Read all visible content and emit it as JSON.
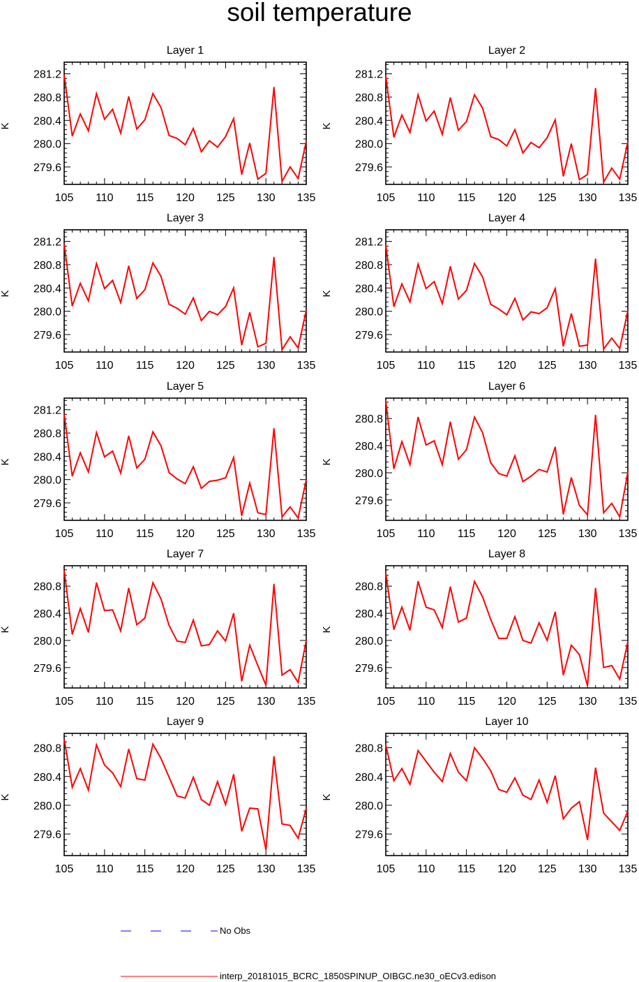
{
  "title": "soil temperature",
  "chart_data": [
    {
      "type": "line",
      "title": "Layer 1",
      "xlabel": "",
      "ylabel": "K",
      "xlim": [
        105,
        135
      ],
      "ylim": [
        279.3,
        281.4
      ],
      "yticks": [
        279.6,
        280.0,
        280.4,
        280.8,
        281.2
      ],
      "xticks": [
        105,
        110,
        115,
        120,
        125,
        130,
        135
      ],
      "series": [
        {
          "name": "interp_20181015_BCRC_1850SPINUP_OIBGC.ne30_oECv3.edison",
          "color": "#ff0000",
          "x": [
            105,
            106,
            107,
            108,
            109,
            110,
            111,
            112,
            113,
            114,
            115,
            116,
            117,
            118,
            119,
            120,
            121,
            122,
            123,
            124,
            125,
            126,
            127,
            128,
            129,
            130,
            131,
            132,
            133,
            134,
            135
          ],
          "y": [
            281.18,
            280.13,
            280.51,
            280.22,
            280.86,
            280.42,
            280.59,
            280.18,
            280.81,
            280.25,
            280.41,
            280.86,
            280.62,
            280.14,
            280.09,
            279.98,
            280.26,
            279.86,
            280.05,
            279.94,
            280.12,
            280.43,
            279.47,
            280.01,
            279.39,
            279.49,
            280.97,
            279.35,
            279.6,
            279.4,
            280.04
          ]
        }
      ]
    },
    {
      "type": "line",
      "title": "Layer 2",
      "xlabel": "",
      "ylabel": "K",
      "xlim": [
        105,
        135
      ],
      "ylim": [
        279.3,
        281.4
      ],
      "yticks": [
        279.6,
        280.0,
        280.4,
        280.8,
        281.2
      ],
      "xticks": [
        105,
        110,
        115,
        120,
        125,
        130,
        135
      ],
      "series": [
        {
          "name": "interp_20181015_BCRC_1850SPINUP_OIBGC.ne30_oECv3.edison",
          "color": "#ff0000",
          "x": [
            105,
            106,
            107,
            108,
            109,
            110,
            111,
            112,
            113,
            114,
            115,
            116,
            117,
            118,
            119,
            120,
            121,
            122,
            123,
            124,
            125,
            126,
            127,
            128,
            129,
            130,
            131,
            132,
            133,
            134,
            135
          ],
          "y": [
            281.16,
            280.11,
            280.49,
            280.19,
            280.84,
            280.39,
            280.56,
            280.16,
            280.79,
            280.23,
            280.38,
            280.84,
            280.61,
            280.12,
            280.07,
            279.96,
            280.24,
            279.84,
            280.02,
            279.93,
            280.1,
            280.41,
            279.44,
            280.0,
            279.38,
            279.47,
            280.95,
            279.34,
            279.58,
            279.39,
            280.03
          ]
        }
      ]
    },
    {
      "type": "line",
      "title": "Layer 3",
      "xlabel": "",
      "ylabel": "K",
      "xlim": [
        105,
        135
      ],
      "ylim": [
        279.3,
        281.4
      ],
      "yticks": [
        279.6,
        280.0,
        280.4,
        280.8,
        281.2
      ],
      "xticks": [
        105,
        110,
        115,
        120,
        125,
        130,
        135
      ],
      "series": [
        {
          "name": "interp_20181015_BCRC_1850SPINUP_OIBGC.ne30_oECv3.edison",
          "color": "#ff0000",
          "x": [
            105,
            106,
            107,
            108,
            109,
            110,
            111,
            112,
            113,
            114,
            115,
            116,
            117,
            118,
            119,
            120,
            121,
            122,
            123,
            124,
            125,
            126,
            127,
            128,
            129,
            130,
            131,
            132,
            133,
            134,
            135
          ],
          "y": [
            281.15,
            280.09,
            280.48,
            280.18,
            280.82,
            280.39,
            280.53,
            280.15,
            280.78,
            280.22,
            280.37,
            280.83,
            280.6,
            280.12,
            280.05,
            279.95,
            280.23,
            279.84,
            280.0,
            279.94,
            280.08,
            280.4,
            279.42,
            279.98,
            279.39,
            279.45,
            280.93,
            279.34,
            279.56,
            279.37,
            280.02
          ]
        }
      ]
    },
    {
      "type": "line",
      "title": "Layer 4",
      "xlabel": "",
      "ylabel": "K",
      "xlim": [
        105,
        135
      ],
      "ylim": [
        279.3,
        281.4
      ],
      "yticks": [
        279.6,
        280.0,
        280.4,
        280.8,
        281.2
      ],
      "xticks": [
        105,
        110,
        115,
        120,
        125,
        130,
        135
      ],
      "series": [
        {
          "name": "interp_20181015_BCRC_1850SPINUP_OIBGC.ne30_oECv3.edison",
          "color": "#ff0000",
          "x": [
            105,
            106,
            107,
            108,
            109,
            110,
            111,
            112,
            113,
            114,
            115,
            116,
            117,
            118,
            119,
            120,
            121,
            122,
            123,
            124,
            125,
            126,
            127,
            128,
            129,
            130,
            131,
            132,
            133,
            134,
            135
          ],
          "y": [
            281.14,
            280.08,
            280.47,
            280.16,
            280.81,
            280.39,
            280.51,
            280.13,
            280.77,
            280.21,
            280.36,
            280.82,
            280.59,
            280.12,
            280.04,
            279.94,
            280.22,
            279.85,
            279.99,
            279.96,
            280.06,
            280.39,
            279.4,
            279.96,
            279.4,
            279.42,
            280.9,
            279.35,
            279.54,
            279.36,
            280.01
          ]
        }
      ]
    },
    {
      "type": "line",
      "title": "Layer 5",
      "xlabel": "",
      "ylabel": "K",
      "xlim": [
        105,
        135
      ],
      "ylim": [
        279.3,
        281.4
      ],
      "yticks": [
        279.6,
        280.0,
        280.4,
        280.8,
        281.2
      ],
      "xticks": [
        105,
        110,
        115,
        120,
        125,
        130,
        135
      ],
      "series": [
        {
          "name": "interp_20181015_BCRC_1850SPINUP_OIBGC.ne30_oECv3.edison",
          "color": "#ff0000",
          "x": [
            105,
            106,
            107,
            108,
            109,
            110,
            111,
            112,
            113,
            114,
            115,
            116,
            117,
            118,
            119,
            120,
            121,
            122,
            123,
            124,
            125,
            126,
            127,
            128,
            129,
            130,
            131,
            132,
            133,
            134,
            135
          ],
          "y": [
            281.12,
            280.06,
            280.46,
            280.13,
            280.81,
            280.39,
            280.49,
            280.11,
            280.75,
            280.2,
            280.35,
            280.82,
            280.58,
            280.12,
            280.01,
            279.93,
            280.22,
            279.85,
            279.97,
            279.99,
            280.03,
            280.38,
            279.38,
            279.94,
            279.43,
            279.4,
            280.88,
            279.36,
            279.53,
            279.34,
            280.0
          ]
        }
      ]
    },
    {
      "type": "line",
      "title": "Layer 6",
      "xlabel": "",
      "ylabel": "K",
      "xlim": [
        105,
        135
      ],
      "ylim": [
        279.3,
        281.1
      ],
      "yticks": [
        279.6,
        280.0,
        280.4,
        280.8
      ],
      "xticks": [
        105,
        110,
        115,
        120,
        125,
        130,
        135
      ],
      "series": [
        {
          "name": "interp_20181015_BCRC_1850SPINUP_OIBGC.ne30_oECv3.edison",
          "color": "#ff0000",
          "x": [
            105,
            106,
            107,
            108,
            109,
            110,
            111,
            112,
            113,
            114,
            115,
            116,
            117,
            118,
            119,
            120,
            121,
            122,
            123,
            124,
            125,
            126,
            127,
            128,
            129,
            130,
            131,
            132,
            133,
            134,
            135
          ],
          "y": [
            281.06,
            280.06,
            280.46,
            280.12,
            280.82,
            280.41,
            280.47,
            280.12,
            280.75,
            280.2,
            280.34,
            280.82,
            280.59,
            280.15,
            279.99,
            279.95,
            280.25,
            279.87,
            279.95,
            280.05,
            280.01,
            280.38,
            279.39,
            279.93,
            279.52,
            279.38,
            280.85,
            279.41,
            279.55,
            279.35,
            280.01
          ]
        }
      ]
    },
    {
      "type": "line",
      "title": "Layer 7",
      "xlabel": "",
      "ylabel": "K",
      "xlim": [
        105,
        135
      ],
      "ylim": [
        279.3,
        281.1
      ],
      "yticks": [
        279.6,
        280.0,
        280.4,
        280.8
      ],
      "xticks": [
        105,
        110,
        115,
        120,
        125,
        130,
        135
      ],
      "series": [
        {
          "name": "interp_20181015_BCRC_1850SPINUP_OIBGC.ne30_oECv3.edison",
          "color": "#ff0000",
          "x": [
            105,
            106,
            107,
            108,
            109,
            110,
            111,
            112,
            113,
            114,
            115,
            116,
            117,
            118,
            119,
            120,
            121,
            122,
            123,
            124,
            125,
            126,
            127,
            128,
            129,
            130,
            131,
            132,
            133,
            134,
            135
          ],
          "y": [
            281.03,
            280.09,
            280.47,
            280.12,
            280.85,
            280.44,
            280.45,
            280.14,
            280.77,
            280.23,
            280.33,
            280.85,
            280.61,
            280.22,
            279.99,
            279.97,
            280.3,
            279.92,
            279.94,
            280.14,
            279.99,
            280.4,
            279.4,
            279.93,
            279.63,
            279.34,
            280.83,
            279.49,
            279.57,
            279.38,
            280.0
          ]
        }
      ]
    },
    {
      "type": "line",
      "title": "Layer 8",
      "xlabel": "",
      "ylabel": "K",
      "xlim": [
        105,
        135
      ],
      "ylim": [
        279.3,
        281.1
      ],
      "yticks": [
        279.6,
        280.0,
        280.4,
        280.8
      ],
      "xticks": [
        105,
        110,
        115,
        120,
        125,
        130,
        135
      ],
      "series": [
        {
          "name": "interp_20181015_BCRC_1850SPINUP_OIBGC.ne30_oECv3.edison",
          "color": "#ff0000",
          "x": [
            105,
            106,
            107,
            108,
            109,
            110,
            111,
            112,
            113,
            114,
            115,
            116,
            117,
            118,
            119,
            120,
            121,
            122,
            123,
            124,
            125,
            126,
            127,
            128,
            129,
            130,
            131,
            132,
            133,
            134,
            135
          ],
          "y": [
            280.99,
            280.16,
            280.49,
            280.15,
            280.87,
            280.49,
            280.45,
            280.19,
            280.79,
            280.27,
            280.33,
            280.87,
            280.64,
            280.31,
            280.03,
            280.03,
            280.35,
            280.0,
            279.96,
            280.26,
            280.0,
            280.42,
            279.49,
            279.93,
            279.79,
            279.33,
            280.77,
            279.6,
            279.63,
            279.43,
            279.98
          ]
        }
      ]
    },
    {
      "type": "line",
      "title": "Layer 9",
      "xlabel": "",
      "ylabel": "K",
      "xlim": [
        105,
        135
      ],
      "ylim": [
        279.3,
        281.0
      ],
      "yticks": [
        279.6,
        280.0,
        280.4,
        280.8
      ],
      "xticks": [
        105,
        110,
        115,
        120,
        125,
        130,
        135
      ],
      "series": [
        {
          "name": "interp_20181015_BCRC_1850SPINUP_OIBGC.ne30_oECv3.edison",
          "color": "#ff0000",
          "x": [
            105,
            106,
            107,
            108,
            109,
            110,
            111,
            112,
            113,
            114,
            115,
            116,
            117,
            118,
            119,
            120,
            121,
            122,
            123,
            124,
            125,
            126,
            127,
            128,
            129,
            130,
            131,
            132,
            133,
            134,
            135
          ],
          "y": [
            280.92,
            280.25,
            280.51,
            280.21,
            280.84,
            280.56,
            280.45,
            280.26,
            280.78,
            280.37,
            280.35,
            280.85,
            280.65,
            280.39,
            280.13,
            280.1,
            280.39,
            280.08,
            280.0,
            280.33,
            280.01,
            280.43,
            279.64,
            279.96,
            279.95,
            279.38,
            280.68,
            279.74,
            279.72,
            279.54,
            279.96
          ]
        }
      ]
    },
    {
      "type": "line",
      "title": "Layer 10",
      "xlabel": "",
      "ylabel": "K",
      "xlim": [
        105,
        135
      ],
      "ylim": [
        279.3,
        281.0
      ],
      "yticks": [
        279.6,
        280.0,
        280.4,
        280.8
      ],
      "xticks": [
        105,
        110,
        115,
        120,
        125,
        130,
        135
      ],
      "series": [
        {
          "name": "interp_20181015_BCRC_1850SPINUP_OIBGC.ne30_oECv3.edison",
          "color": "#ff0000",
          "x": [
            105,
            106,
            107,
            108,
            109,
            110,
            111,
            112,
            113,
            114,
            115,
            116,
            117,
            118,
            119,
            120,
            121,
            122,
            123,
            124,
            125,
            126,
            127,
            128,
            129,
            130,
            131,
            132,
            133,
            134,
            135
          ],
          "y": [
            280.84,
            280.34,
            280.51,
            280.29,
            280.76,
            280.61,
            280.46,
            280.33,
            280.72,
            280.46,
            280.34,
            280.8,
            280.65,
            280.48,
            280.22,
            280.18,
            280.38,
            280.14,
            280.08,
            280.35,
            280.04,
            280.41,
            279.81,
            279.96,
            280.05,
            279.52,
            280.52,
            279.89,
            279.77,
            279.65,
            279.92
          ]
        }
      ]
    }
  ],
  "legend": [
    {
      "label": "No Obs",
      "color": "#0000ff",
      "style": "dashed"
    },
    {
      "label": "interp_20181015_BCRC_1850SPINUP_OIBGC.ne30_oECv3.edison",
      "color": "#ff0000",
      "style": "solid"
    }
  ]
}
